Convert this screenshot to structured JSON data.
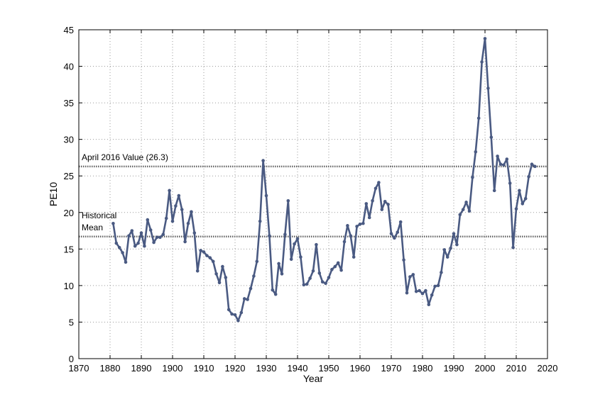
{
  "chart_data": {
    "type": "line",
    "title": "",
    "xlabel": "Year",
    "ylabel": "PE10",
    "xlim": [
      1870,
      2020
    ],
    "ylim": [
      0,
      45
    ],
    "xticks": [
      1870,
      1880,
      1890,
      1900,
      1910,
      1920,
      1930,
      1940,
      1950,
      1960,
      1970,
      1980,
      1990,
      2000,
      2010,
      2020
    ],
    "yticks": [
      0,
      5,
      10,
      15,
      20,
      25,
      30,
      35,
      40,
      45
    ],
    "grid": true,
    "line_color": "#4a5a82",
    "reference_color": "#666666",
    "reference_lines": [
      {
        "y": 26.3,
        "label": [
          "April 2016 Value (26.3)"
        ]
      },
      {
        "y": 16.7,
        "label": [
          "Historical",
          "Mean"
        ]
      }
    ],
    "series": [
      {
        "x": [
          1881,
          1882,
          1883,
          1884,
          1885,
          1886,
          1887,
          1888,
          1889,
          1890,
          1891,
          1892,
          1893,
          1894,
          1895,
          1896,
          1897,
          1898,
          1899,
          1900,
          1901,
          1902,
          1903,
          1904,
          1905,
          1906,
          1907,
          1908,
          1909,
          1910,
          1911,
          1912,
          1913,
          1914,
          1915,
          1916,
          1917,
          1918,
          1919,
          1920,
          1921,
          1922,
          1923,
          1924,
          1925,
          1926,
          1927,
          1928,
          1929,
          1930,
          1931,
          1932,
          1933,
          1934,
          1935,
          1936,
          1937,
          1938,
          1939,
          1940,
          1941,
          1942,
          1943,
          1944,
          1945,
          1946,
          1947,
          1948,
          1949,
          1950,
          1951,
          1952,
          1953,
          1954,
          1955,
          1956,
          1957,
          1958,
          1959,
          1960,
          1961,
          1962,
          1963,
          1964,
          1965,
          1966,
          1967,
          1968,
          1969,
          1970,
          1971,
          1972,
          1973,
          1974,
          1975,
          1976,
          1977,
          1978,
          1979,
          1980,
          1981,
          1982,
          1983,
          1984,
          1985,
          1986,
          1987,
          1988,
          1989,
          1990,
          1991,
          1992,
          1993,
          1994,
          1995,
          1996,
          1997,
          1998,
          1999,
          2000,
          2001,
          2002,
          2003,
          2004,
          2005,
          2006,
          2007,
          2008,
          2009,
          2010,
          2011,
          2012,
          2013,
          2014,
          2015,
          2016
        ],
        "values": [
          18.5,
          15.8,
          15.2,
          14.5,
          13.2,
          16.8,
          17.5,
          15.4,
          15.8,
          17.2,
          15.4,
          19.0,
          17.6,
          15.9,
          16.6,
          16.6,
          17.0,
          19.2,
          23.0,
          18.8,
          20.9,
          22.3,
          20.4,
          16.0,
          18.5,
          20.1,
          17.2,
          12.0,
          14.8,
          14.6,
          14.1,
          13.8,
          13.3,
          11.6,
          10.4,
          12.6,
          11.1,
          6.7,
          6.1,
          6.0,
          5.2,
          6.3,
          8.2,
          8.1,
          9.6,
          11.3,
          13.3,
          18.8,
          27.1,
          22.3,
          16.8,
          9.4,
          8.8,
          13.0,
          11.6,
          17.0,
          21.6,
          13.6,
          15.7,
          16.4,
          13.9,
          10.1,
          10.2,
          11.0,
          12.0,
          15.6,
          11.7,
          10.5,
          10.3,
          11.1,
          12.2,
          12.6,
          13.1,
          12.1,
          16.0,
          18.2,
          16.8,
          13.9,
          18.1,
          18.4,
          18.5,
          21.2,
          19.3,
          21.6,
          23.3,
          24.1,
          20.4,
          21.5,
          21.1,
          17.1,
          16.5,
          17.3,
          18.7,
          13.5,
          9.0,
          11.2,
          11.5,
          9.2,
          9.3,
          8.9,
          9.3,
          7.4,
          8.7,
          9.9,
          10.0,
          11.8,
          14.9,
          13.9,
          15.1,
          17.1,
          15.6,
          19.7,
          20.4,
          21.4,
          20.2,
          24.8,
          28.3,
          32.9,
          40.6,
          43.8,
          37.0,
          30.3,
          23.0,
          27.7,
          26.6,
          26.5,
          27.3,
          24.0,
          15.2,
          20.5,
          23.0,
          21.2,
          21.9,
          24.9,
          26.6,
          26.3
        ]
      }
    ]
  }
}
